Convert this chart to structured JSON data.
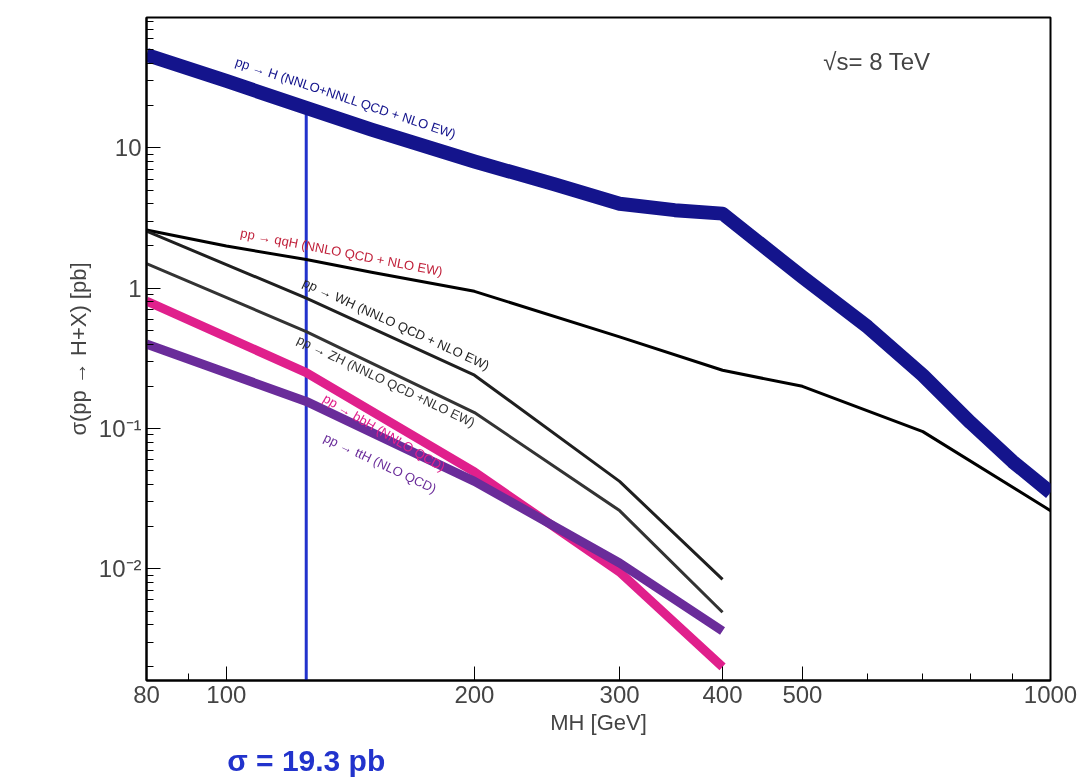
{
  "chart_data": {
    "type": "line",
    "xlabel": "MH [GeV]",
    "ylabel": "σ(pp → H+X) [pb]",
    "log": "xy",
    "grid": false,
    "marker": "none",
    "line_style": "solid",
    "xlim": [
      80,
      1000
    ],
    "xticks": [
      80,
      100,
      200,
      300,
      400,
      500,
      1000
    ],
    "ylim": [
      0.0016,
      85
    ],
    "yticks": [
      {
        "value": 0.01,
        "label": "10⁻²"
      },
      {
        "value": 0.1,
        "label": "10⁻¹"
      },
      1,
      10
    ],
    "series": [
      {
        "name": "pp → H (NNLO+NNLL QCD + NLO EW)",
        "color": "#14148c",
        "x": [
          80,
          100,
          125,
          150,
          200,
          250,
          300,
          350,
          400,
          500,
          600,
          700,
          800,
          900,
          1000
        ],
        "values": [
          46,
          30,
          19.3,
          13.5,
          8,
          5.5,
          4,
          3.6,
          3.4,
          1.2,
          0.53,
          0.24,
          0.11,
          0.058,
          0.035
        ]
      },
      {
        "name": "pp → qqH (NNLO QCD + NLO EW)",
        "color": "#000000",
        "x": [
          80,
          100,
          125,
          150,
          200,
          300,
          400,
          500,
          700,
          1000
        ],
        "values": [
          2.6,
          2.0,
          1.6,
          1.3,
          0.95,
          0.45,
          0.26,
          0.2,
          0.095,
          0.026
        ]
      },
      {
        "name": "pp → WH (NNLO QCD + NLO EW)",
        "color": "#1f1f1f",
        "x": [
          80,
          125,
          200,
          300,
          400
        ],
        "values": [
          2.55,
          0.85,
          0.24,
          0.042,
          0.0084
        ]
      },
      {
        "name": "pp → ZH (NNLO QCD +NLO EW)",
        "color": "#333333",
        "x": [
          80,
          125,
          200,
          300,
          400
        ],
        "values": [
          1.5,
          0.49,
          0.13,
          0.026,
          0.0049
        ]
      },
      {
        "name": "pp → bbH (NNLO QCD)",
        "color": "#e0208c",
        "x": [
          80,
          125,
          200,
          300,
          400
        ],
        "values": [
          0.81,
          0.25,
          0.049,
          0.0095,
          0.002
        ]
      },
      {
        "name": "pp → ttH (NLO QCD)",
        "color": "#6a2c9a",
        "x": [
          80,
          125,
          200,
          300,
          400
        ],
        "values": [
          0.4,
          0.156,
          0.042,
          0.011,
          0.0036
        ]
      },
      {
        "name": "σ = 19.3 pb",
        "color": "#2233cc",
        "x": [
          125,
          125
        ],
        "values": [
          0.0016,
          19.3
        ]
      }
    ],
    "annotations": [
      "√s= 8 TeV"
    ]
  }
}
